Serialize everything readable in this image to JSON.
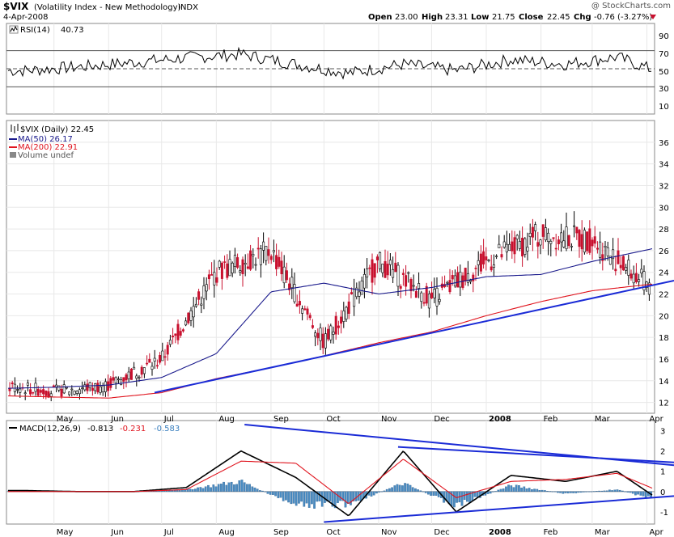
{
  "header": {
    "symbol": "$VIX",
    "name": "(Volatility Index - New Methodology)",
    "exchange": "INDX",
    "date": "4-Apr-2008",
    "watermark": "@ StockCharts.com",
    "open_label": "Open",
    "open": "23.00",
    "high_label": "High",
    "high": "23.31",
    "low_label": "Low",
    "low": "21.75",
    "close_label": "Close",
    "close": "22.45",
    "chg_label": "Chg",
    "chg": "-0.76 (-3.27%)"
  },
  "rsi": {
    "legend_label": "RSI(14)",
    "legend_value": "40.73",
    "ticks": [
      "90",
      "70",
      "50",
      "30",
      "10"
    ]
  },
  "price": {
    "legend_main": "$VIX (Daily) 22.45",
    "legend_ma50": "MA(50) 26.17",
    "legend_ma200": "MA(200) 22.91",
    "legend_volume": "Volume undef",
    "ticks": [
      "36",
      "34",
      "32",
      "30",
      "28",
      "26",
      "24",
      "22",
      "20",
      "18",
      "16",
      "14",
      "12"
    ]
  },
  "macd": {
    "legend_label": "MACD(12,26,9)",
    "legend_v1": "-0.813",
    "legend_v2": "-0.231",
    "legend_v3": "-0.583",
    "ticks": [
      "3",
      "2",
      "1",
      "0",
      "-1"
    ]
  },
  "x_axis": {
    "labels": [
      "May",
      "Jun",
      "Jul",
      "Aug",
      "Sep",
      "Oct",
      "Nov",
      "Dec",
      "2008",
      "Feb",
      "Mar",
      "Apr"
    ]
  },
  "colors": {
    "up_candle": "#ffffff",
    "down_candle": "#c8102e",
    "ma50": "#1a1a8c",
    "ma200": "#e0141e",
    "trendline": "#1a2bd6",
    "macd_hist": "#4a8cc2",
    "grid": "#e8e8e8"
  },
  "chart_data": [
    {
      "type": "line",
      "title": "RSI(14)",
      "ylim": [
        0,
        100
      ],
      "reference_lines": [
        70,
        50,
        30
      ],
      "x": [
        "2007-04",
        "2007-05",
        "2007-06",
        "2007-07",
        "2007-08",
        "2007-09",
        "2007-10",
        "2007-11",
        "2007-12",
        "2008-01",
        "2008-02",
        "2008-03",
        "2008-04"
      ],
      "series": [
        {
          "name": "RSI(14)",
          "values": [
            48,
            52,
            57,
            62,
            66,
            55,
            45,
            55,
            48,
            60,
            55,
            63,
            41
          ]
        }
      ],
      "last_value": 40.73
    },
    {
      "type": "candlestick",
      "title": "$VIX (Daily)",
      "ylim": [
        11,
        38
      ],
      "x": [
        "2007-04-05",
        "2007-05-01",
        "2007-06-01",
        "2007-07-01",
        "2007-08-01",
        "2007-09-01",
        "2007-10-01",
        "2007-11-01",
        "2007-12-01",
        "2008-01-01",
        "2008-02-01",
        "2008-03-01",
        "2008-04-04"
      ],
      "series": [
        {
          "name": "$VIX",
          "values": [
            13.5,
            13.0,
            13.6,
            16.0,
            24.0,
            26.0,
            17.5,
            25.0,
            21.5,
            25.0,
            27.5,
            27.0,
            22.45
          ]
        },
        {
          "name": "MA(50)",
          "values": [
            13.3,
            13.4,
            13.6,
            14.3,
            16.5,
            22.2,
            23.0,
            22.0,
            22.6,
            23.6,
            23.8,
            25.0,
            26.17
          ]
        },
        {
          "name": "MA(200)",
          "values": [
            12.6,
            12.5,
            12.4,
            12.9,
            14.2,
            15.2,
            16.3,
            17.5,
            18.5,
            20.0,
            21.3,
            22.3,
            22.91
          ]
        }
      ],
      "annotations": [
        {
          "type": "trendline",
          "from": [
            "2007-06-27",
            12.9
          ],
          "to": [
            "2008-04-04",
            22.8
          ]
        }
      ],
      "volume": "undef"
    },
    {
      "type": "line",
      "title": "MACD(12,26,9)",
      "ylim": [
        -1.6,
        3.5
      ],
      "x": [
        "2007-04",
        "2007-05",
        "2007-06",
        "2007-07",
        "2007-08",
        "2007-09",
        "2007-10",
        "2007-11",
        "2007-12",
        "2008-01",
        "2008-02",
        "2008-03",
        "2008-04"
      ],
      "series": [
        {
          "name": "MACD",
          "values": [
            0.05,
            0.0,
            0.0,
            0.2,
            2.0,
            0.7,
            -1.2,
            2.0,
            -1.0,
            0.8,
            0.5,
            1.0,
            -0.813
          ]
        },
        {
          "name": "Signal",
          "values": [
            0.0,
            0.0,
            0.0,
            0.1,
            1.5,
            1.4,
            -0.6,
            1.6,
            -0.3,
            0.5,
            0.6,
            0.9,
            -0.231
          ]
        },
        {
          "name": "Histogram",
          "values": [
            0.05,
            0.0,
            0.0,
            0.1,
            0.5,
            -0.7,
            -0.6,
            0.4,
            -0.7,
            0.3,
            -0.1,
            0.1,
            -0.583
          ]
        }
      ],
      "annotations": [
        {
          "type": "trendline",
          "from": [
            "2007-08-17",
            3.3
          ],
          "to": [
            "2008-04-04",
            1.4
          ]
        },
        {
          "type": "trendline",
          "from": [
            "2007-11-12",
            2.2
          ],
          "to": [
            "2008-04-04",
            1.5
          ]
        },
        {
          "type": "trendline",
          "from": [
            "2007-10-01",
            -1.5
          ],
          "to": [
            "2008-04-04",
            -0.3
          ]
        }
      ]
    }
  ]
}
